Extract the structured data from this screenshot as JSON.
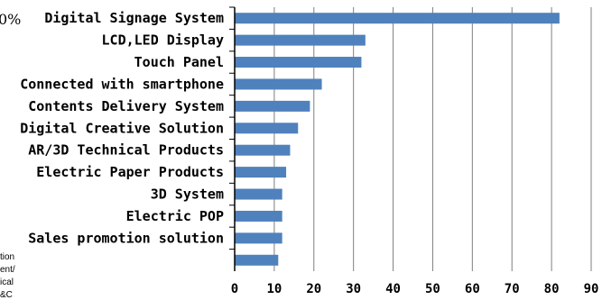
{
  "chart_data": {
    "type": "bar",
    "orientation": "horizontal",
    "categories": [
      "Digital Signage System",
      "LCD,LED Display",
      "Touch Panel",
      "Connected with smartphone",
      "Contents Delivery System",
      "Digital Creative Solution",
      "AR/3D Technical Products",
      "Electric Paper Products",
      "3D System",
      "Electric POP",
      "Sales promotion solution",
      ""
    ],
    "values": [
      82,
      33,
      32,
      22,
      19,
      16,
      14,
      13,
      12,
      12,
      12,
      11
    ],
    "xlim": [
      0,
      90
    ],
    "xticks": [
      0,
      10,
      20,
      30,
      40,
      50,
      60,
      70,
      80,
      90
    ],
    "grid": true,
    "bar_color": "#4f81bd",
    "title": "",
    "xlabel": "",
    "ylabel": "",
    "cropped_fragments": {
      "top_left": "0%",
      "bottom_left": [
        "tion",
        "ent/",
        "ical",
        "&C"
      ]
    }
  }
}
